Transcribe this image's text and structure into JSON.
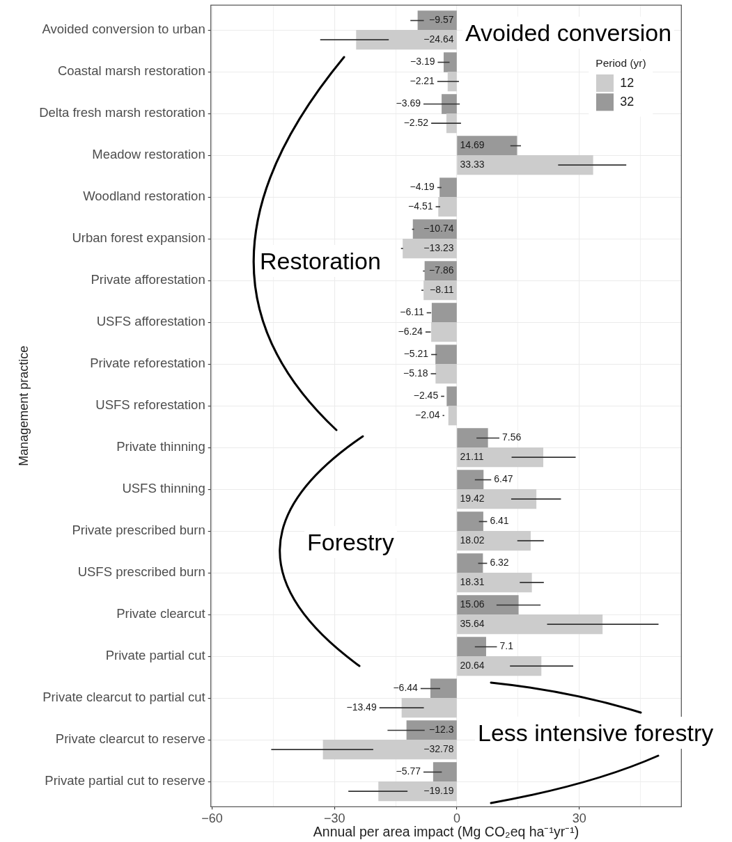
{
  "chart_data": {
    "type": "bar",
    "orientation": "horizontal",
    "xlabel": "Annual per area impact (Mg CO₂eq ha⁻¹yr⁻¹)",
    "ylabel": "Management practice",
    "categories": [
      "Avoided conversion to urban",
      "Coastal marsh restoration",
      "Delta fresh marsh restoration",
      "Meadow restoration",
      "Woodland restoration",
      "Urban forest expansion",
      "Private afforestation",
      "USFS afforestation",
      "Private reforestation",
      "USFS reforestation",
      "Private thinning",
      "USFS thinning",
      "Private prescribed burn",
      "USFS prescribed burn",
      "Private clearcut",
      "Private partial cut",
      "Private clearcut to partial cut",
      "Private clearcut to reserve",
      "Private partial cut to reserve"
    ],
    "series": [
      {
        "name": "12",
        "color": "#cccccc",
        "values": [
          -24.64,
          -2.21,
          -2.52,
          33.33,
          -4.51,
          -13.23,
          -8.11,
          -6.24,
          -5.18,
          -2.04,
          21.11,
          19.42,
          18.02,
          18.31,
          35.64,
          20.64,
          -13.49,
          -32.78,
          -19.19
        ],
        "errors": [
          [
            -33.5,
            -16.7
          ],
          [
            -4.8,
            0.5
          ],
          [
            -6.3,
            1.0
          ],
          [
            24.8,
            41.5
          ],
          [
            -5.2,
            -4.1
          ],
          [
            -13.7,
            -13.2
          ],
          [
            -8.7,
            -8.2
          ],
          [
            -7.7,
            -6.4
          ],
          [
            -6.4,
            -5.1
          ],
          [
            -3.5,
            -3.1
          ],
          [
            13.4,
            29.1
          ],
          [
            13.3,
            25.5
          ],
          [
            14.8,
            21.3
          ],
          [
            15.4,
            21.3
          ],
          [
            22.1,
            49.4
          ],
          [
            13.0,
            28.5
          ],
          [
            -19.0,
            -8.1
          ],
          [
            -45.5,
            -20.5
          ],
          [
            -26.6,
            -12.1
          ]
        ]
      },
      {
        "name": "32",
        "color": "#999999",
        "values": [
          -9.57,
          -3.19,
          -3.69,
          14.69,
          -4.19,
          -10.74,
          -7.86,
          -6.11,
          -5.21,
          -2.45,
          7.56,
          6.47,
          6.41,
          6.32,
          15.06,
          7.1,
          -6.44,
          -12.3,
          -5.77
        ],
        "errors": [
          [
            -11.4,
            -8.1
          ],
          [
            -4.7,
            -1.8
          ],
          [
            -8.2,
            0.7
          ],
          [
            13.1,
            15.7
          ],
          [
            -4.8,
            -3.8
          ],
          [
            -11.0,
            -10.5
          ],
          [
            -8.3,
            -7.9
          ],
          [
            -7.4,
            -6.3
          ],
          [
            -6.3,
            -4.9
          ],
          [
            -3.9,
            -3.1
          ],
          [
            4.8,
            10.4
          ],
          [
            4.4,
            8.4
          ],
          [
            5.4,
            7.4
          ],
          [
            5.2,
            7.4
          ],
          [
            9.7,
            20.5
          ],
          [
            4.4,
            9.8
          ],
          [
            -8.9,
            -4.1
          ],
          [
            -17.0,
            -7.9
          ],
          [
            -8.2,
            -3.7
          ]
        ]
      }
    ],
    "xlim": [
      -60.3,
      55
    ],
    "xticks": [
      -60,
      {
        "value": -45,
        "label": null
      },
      -30,
      {
        "value": -15,
        "label": null
      },
      0,
      {
        "value": 15,
        "label": null
      },
      30,
      {
        "value": 45,
        "label": null
      }
    ],
    "grid": true,
    "legend": "top right",
    "legend_title": "Period (yr)",
    "data_labels": true,
    "annotations": [
      "Avoided conversion",
      "Restoration",
      "Forestry",
      "Less intensive forestry"
    ]
  }
}
